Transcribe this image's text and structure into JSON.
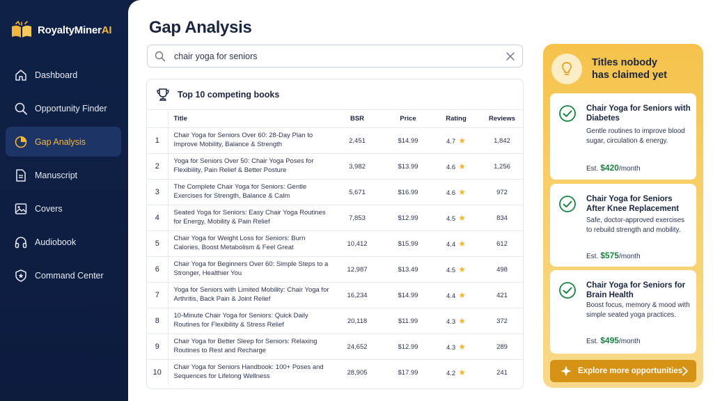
{
  "brand": {
    "name_primary": "RoyaltyMiner",
    "name_accent": "AI",
    "accent_color": "#f4b63c"
  },
  "sidebar": {
    "items": [
      {
        "label": "Dashboard",
        "icon": "home-icon",
        "active": false
      },
      {
        "label": "Opportunity Finder",
        "icon": "search-icon",
        "active": false
      },
      {
        "label": "Gap Analysis",
        "icon": "pie-chart-icon",
        "active": true
      },
      {
        "label": "Manuscript",
        "icon": "document-icon",
        "active": false
      },
      {
        "label": "Covers",
        "icon": "image-icon",
        "active": false
      },
      {
        "label": "Audiobook",
        "icon": "headphones-icon",
        "active": false
      },
      {
        "label": "Command Center",
        "icon": "shield-icon",
        "active": false
      }
    ]
  },
  "main": {
    "title": "Gap Analysis",
    "search": {
      "value": "chair yoga for seniors"
    },
    "table": {
      "heading": "Top 10 competing books",
      "columns": {
        "title": "Title",
        "bsr": "BSR",
        "price": "Price",
        "rating": "Rating",
        "reviews": "Reviews"
      },
      "rows": [
        {
          "rank": "1",
          "title": "Chair Yoga for Seniors Over 60: 28-Day Plan to Improve Mobility, Balance & Strength",
          "bsr": "2,451",
          "price": "$14.99",
          "rating": "4.7",
          "reviews": "1,842"
        },
        {
          "rank": "2",
          "title": "Yoga for Seniors Over 50: Chair Yoga Poses for Flexibility, Pain Relief & Better Posture",
          "bsr": "3,982",
          "price": "$13.99",
          "rating": "4.6",
          "reviews": "1,256"
        },
        {
          "rank": "3",
          "title": "The Complete Chair Yoga for Seniors: Gentle Exercises for Strength, Balance & Calm",
          "bsr": "5,671",
          "price": "$16.99",
          "rating": "4.6",
          "reviews": "972"
        },
        {
          "rank": "4",
          "title": "Seated Yoga for Seniors: Easy Chair Yoga Routines for Energy, Mobility & Pain Relief",
          "bsr": "7,853",
          "price": "$12.99",
          "rating": "4.5",
          "reviews": "834"
        },
        {
          "rank": "5",
          "title": "Chair Yoga for Weight Loss for Seniors: Burn Calories, Boost Metabolism & Feel Great",
          "bsr": "10,412",
          "price": "$15.99",
          "rating": "4.4",
          "reviews": "612"
        },
        {
          "rank": "6",
          "title": "Chair Yoga for Beginners Over 60: Simple Steps to a Stronger, Healthier You",
          "bsr": "12,987",
          "price": "$13.49",
          "rating": "4.5",
          "reviews": "498"
        },
        {
          "rank": "7",
          "title": "Yoga for Seniors with Limited Mobility: Chair Yoga for Arthritis, Back Pain & Joint Relief",
          "bsr": "16,234",
          "price": "$14.99",
          "rating": "4.4",
          "reviews": "421"
        },
        {
          "rank": "8",
          "title": "10-Minute Chair Yoga for Seniors: Quick Daily Routines for Flexibility & Stress Relief",
          "bsr": "20,118",
          "price": "$11.99",
          "rating": "4.3",
          "reviews": "372"
        },
        {
          "rank": "9",
          "title": "Chair Yoga for Better Sleep for Seniors: Relaxing Routines to Rest and Recharge",
          "bsr": "24,652",
          "price": "$12.99",
          "rating": "4.3",
          "reviews": "289"
        },
        {
          "rank": "10",
          "title": "Chair Yoga for Seniors Handbook: 100+ Poses and Sequences for Lifelong Wellness",
          "bsr": "28,905",
          "price": "$17.99",
          "rating": "4.2",
          "reviews": "241"
        }
      ]
    }
  },
  "opportunities": {
    "title": "Titles nobody has claimed yet",
    "items": [
      {
        "title": "Chair Yoga for Seniors with Diabetes",
        "description": "Gentle routines to improve blood sugar, circulation & energy.",
        "est_label": "Est.",
        "amount": "$420",
        "period": "/month"
      },
      {
        "title": "Chair Yoga for Seniors After Knee Replacement",
        "description": "Safe, doctor-approved exercises to rebuild strength and mobility.",
        "est_label": "Est.",
        "amount": "$575",
        "period": "/month"
      },
      {
        "title": "Chair Yoga for Seniors for Brain Health",
        "description": "Boost focus, memory & mood with simple seated yoga practices.",
        "est_label": "Est.",
        "amount": "$495",
        "period": "/month"
      }
    ],
    "cta_label": "Explore more opportunities"
  },
  "colors": {
    "sidebar_bg": "#0f2147",
    "active_text": "#f4b63c",
    "panel_gold": "#f6c24a",
    "money_green": "#14843d",
    "star": "#f2b526",
    "cta_bg": "#d69214"
  }
}
